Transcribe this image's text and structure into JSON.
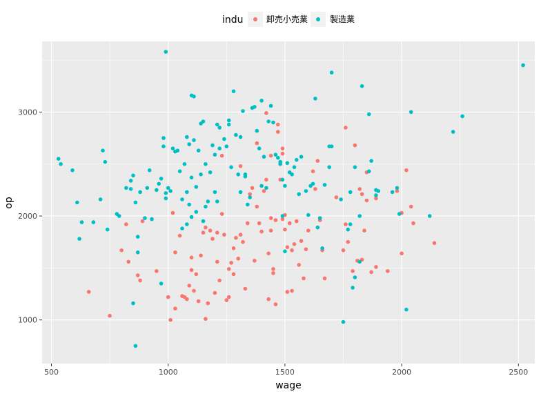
{
  "chart_data": {
    "type": "scatter",
    "xlabel": "wage",
    "ylabel": "op",
    "xlim": [
      460,
      2570
    ],
    "ylim": [
      580,
      3680
    ],
    "x_ticks": [
      500,
      1000,
      1500,
      2000,
      2500
    ],
    "y_ticks": [
      1000,
      2000,
      3000
    ],
    "grid": true,
    "legend": {
      "title": "indu",
      "position": "top",
      "entries": [
        "卸売小売業",
        "製造業"
      ]
    },
    "series": [
      {
        "name": "卸売小売業",
        "color": "#F8766D",
        "points": [
          [
            660,
            1270
          ],
          [
            750,
            1040
          ],
          [
            800,
            1670
          ],
          [
            830,
            1560
          ],
          [
            870,
            1430
          ],
          [
            880,
            1380
          ],
          [
            890,
            1950
          ],
          [
            820,
            1920
          ],
          [
            950,
            1470
          ],
          [
            1000,
            1220
          ],
          [
            1010,
            1000
          ],
          [
            1030,
            1110
          ],
          [
            1030,
            1650
          ],
          [
            1020,
            2030
          ],
          [
            1050,
            1810
          ],
          [
            1060,
            1230
          ],
          [
            1070,
            1220
          ],
          [
            1080,
            1200
          ],
          [
            1090,
            1330
          ],
          [
            1100,
            1480
          ],
          [
            1100,
            1600
          ],
          [
            1110,
            1280
          ],
          [
            1120,
            1440
          ],
          [
            1130,
            1180
          ],
          [
            1140,
            1620
          ],
          [
            1150,
            1840
          ],
          [
            1160,
            1890
          ],
          [
            1160,
            1010
          ],
          [
            1170,
            1160
          ],
          [
            1180,
            1860
          ],
          [
            1190,
            1780
          ],
          [
            1200,
            1260
          ],
          [
            1210,
            1560
          ],
          [
            1210,
            1840
          ],
          [
            1220,
            1380
          ],
          [
            1230,
            2580
          ],
          [
            1230,
            2020
          ],
          [
            1240,
            1820
          ],
          [
            1250,
            1190
          ],
          [
            1260,
            1220
          ],
          [
            1260,
            1490
          ],
          [
            1270,
            1550
          ],
          [
            1280,
            1690
          ],
          [
            1280,
            1440
          ],
          [
            1290,
            1790
          ],
          [
            1300,
            1590
          ],
          [
            1310,
            1820
          ],
          [
            1310,
            2480
          ],
          [
            1320,
            1750
          ],
          [
            1330,
            1300
          ],
          [
            1340,
            1930
          ],
          [
            1350,
            2210
          ],
          [
            1360,
            2270
          ],
          [
            1370,
            1570
          ],
          [
            1380,
            2090
          ],
          [
            1380,
            2700
          ],
          [
            1390,
            1930
          ],
          [
            1400,
            1850
          ],
          [
            1410,
            2240
          ],
          [
            1420,
            2350
          ],
          [
            1420,
            2990
          ],
          [
            1430,
            1640
          ],
          [
            1430,
            1200
          ],
          [
            1440,
            1980
          ],
          [
            1440,
            1860
          ],
          [
            1440,
            2580
          ],
          [
            1450,
            1490
          ],
          [
            1450,
            1450
          ],
          [
            1460,
            1150
          ],
          [
            1460,
            1960
          ],
          [
            1470,
            2810
          ],
          [
            1470,
            2880
          ],
          [
            1480,
            2350
          ],
          [
            1490,
            2600
          ],
          [
            1490,
            2650
          ],
          [
            1490,
            1970
          ],
          [
            1500,
            2010
          ],
          [
            1500,
            1870
          ],
          [
            1510,
            1270
          ],
          [
            1510,
            1700
          ],
          [
            1520,
            1930
          ],
          [
            1530,
            1280
          ],
          [
            1530,
            1670
          ],
          [
            1540,
            1730
          ],
          [
            1550,
            1950
          ],
          [
            1560,
            1530
          ],
          [
            1570,
            1760
          ],
          [
            1580,
            1400
          ],
          [
            1590,
            1680
          ],
          [
            1600,
            1860
          ],
          [
            1620,
            2430
          ],
          [
            1630,
            2260
          ],
          [
            1640,
            2530
          ],
          [
            1650,
            1960
          ],
          [
            1660,
            1670
          ],
          [
            1670,
            1400
          ],
          [
            1720,
            2180
          ],
          [
            1750,
            1670
          ],
          [
            1760,
            2850
          ],
          [
            1760,
            1920
          ],
          [
            1770,
            1750
          ],
          [
            1790,
            1470
          ],
          [
            1800,
            2680
          ],
          [
            1810,
            1570
          ],
          [
            1820,
            2260
          ],
          [
            1830,
            1580
          ],
          [
            1830,
            2210
          ],
          [
            1840,
            1860
          ],
          [
            1850,
            2420
          ],
          [
            1850,
            2150
          ],
          [
            1870,
            1460
          ],
          [
            1890,
            2170
          ],
          [
            1890,
            1510
          ],
          [
            1940,
            1470
          ],
          [
            1980,
            2240
          ],
          [
            2000,
            2030
          ],
          [
            2000,
            1640
          ],
          [
            2020,
            2440
          ],
          [
            2050,
            1930
          ],
          [
            2040,
            2090
          ],
          [
            2140,
            1740
          ]
        ]
      },
      {
        "name": "製造業",
        "color": "#00BFC4",
        "points": [
          [
            530,
            2550
          ],
          [
            540,
            2500
          ],
          [
            590,
            2440
          ],
          [
            610,
            2130
          ],
          [
            620,
            1780
          ],
          [
            630,
            1940
          ],
          [
            680,
            1940
          ],
          [
            710,
            2160
          ],
          [
            720,
            2630
          ],
          [
            730,
            2520
          ],
          [
            740,
            1870
          ],
          [
            780,
            2020
          ],
          [
            790,
            2000
          ],
          [
            820,
            2270
          ],
          [
            840,
            2260
          ],
          [
            840,
            2340
          ],
          [
            850,
            2390
          ],
          [
            850,
            1160
          ],
          [
            860,
            2130
          ],
          [
            860,
            750
          ],
          [
            870,
            1800
          ],
          [
            870,
            1650
          ],
          [
            880,
            2230
          ],
          [
            900,
            1980
          ],
          [
            910,
            2270
          ],
          [
            920,
            2440
          ],
          [
            930,
            1970
          ],
          [
            950,
            2250
          ],
          [
            960,
            2310
          ],
          [
            970,
            2360
          ],
          [
            970,
            1350
          ],
          [
            980,
            2750
          ],
          [
            980,
            2670
          ],
          [
            990,
            2170
          ],
          [
            990,
            2220
          ],
          [
            990,
            3580
          ],
          [
            1000,
            2270
          ],
          [
            1010,
            2240
          ],
          [
            1020,
            2650
          ],
          [
            1030,
            2620
          ],
          [
            1040,
            2630
          ],
          [
            1050,
            2430
          ],
          [
            1060,
            2160
          ],
          [
            1060,
            1880
          ],
          [
            1070,
            2500
          ],
          [
            1080,
            2760
          ],
          [
            1080,
            2230
          ],
          [
            1080,
            1920
          ],
          [
            1090,
            2690
          ],
          [
            1090,
            2110
          ],
          [
            1100,
            3160
          ],
          [
            1100,
            2370
          ],
          [
            1100,
            1990
          ],
          [
            1110,
            3150
          ],
          [
            1110,
            2730
          ],
          [
            1120,
            2280
          ],
          [
            1120,
            2040
          ],
          [
            1130,
            2630
          ],
          [
            1140,
            2890
          ],
          [
            1140,
            2400
          ],
          [
            1150,
            2910
          ],
          [
            1150,
            1950
          ],
          [
            1160,
            2500
          ],
          [
            1160,
            2090
          ],
          [
            1170,
            2140
          ],
          [
            1180,
            2420
          ],
          [
            1190,
            2680
          ],
          [
            1200,
            2590
          ],
          [
            1200,
            2230
          ],
          [
            1210,
            2880
          ],
          [
            1210,
            2140
          ],
          [
            1220,
            2850
          ],
          [
            1220,
            2650
          ],
          [
            1240,
            2740
          ],
          [
            1250,
            2670
          ],
          [
            1260,
            2880
          ],
          [
            1260,
            2920
          ],
          [
            1270,
            2470
          ],
          [
            1280,
            3200
          ],
          [
            1290,
            2780
          ],
          [
            1300,
            2400
          ],
          [
            1310,
            2230
          ],
          [
            1310,
            2760
          ],
          [
            1320,
            3010
          ],
          [
            1330,
            2380
          ],
          [
            1330,
            2400
          ],
          [
            1340,
            2110
          ],
          [
            1350,
            2180
          ],
          [
            1360,
            3040
          ],
          [
            1370,
            3050
          ],
          [
            1380,
            2820
          ],
          [
            1390,
            2650
          ],
          [
            1400,
            2290
          ],
          [
            1400,
            3110
          ],
          [
            1410,
            2570
          ],
          [
            1420,
            2270
          ],
          [
            1430,
            2910
          ],
          [
            1440,
            3060
          ],
          [
            1450,
            2900
          ],
          [
            1460,
            2590
          ],
          [
            1470,
            2560
          ],
          [
            1480,
            2500
          ],
          [
            1480,
            2520
          ],
          [
            1490,
            2350
          ],
          [
            1490,
            2000
          ],
          [
            1500,
            2290
          ],
          [
            1500,
            1660
          ],
          [
            1510,
            2510
          ],
          [
            1520,
            2420
          ],
          [
            1530,
            2400
          ],
          [
            1540,
            2470
          ],
          [
            1550,
            2540
          ],
          [
            1560,
            2210
          ],
          [
            1570,
            2570
          ],
          [
            1590,
            2240
          ],
          [
            1600,
            2010
          ],
          [
            1610,
            2290
          ],
          [
            1620,
            2310
          ],
          [
            1630,
            3130
          ],
          [
            1640,
            1890
          ],
          [
            1650,
            1980
          ],
          [
            1660,
            1690
          ],
          [
            1670,
            2300
          ],
          [
            1690,
            2470
          ],
          [
            1690,
            2670
          ],
          [
            1700,
            2670
          ],
          [
            1700,
            3380
          ],
          [
            1740,
            2160
          ],
          [
            1750,
            980
          ],
          [
            1770,
            1870
          ],
          [
            1780,
            1920
          ],
          [
            1780,
            2230
          ],
          [
            1790,
            1310
          ],
          [
            1800,
            1410
          ],
          [
            1800,
            2470
          ],
          [
            1820,
            1560
          ],
          [
            1820,
            2000
          ],
          [
            1830,
            3250
          ],
          [
            1860,
            2430
          ],
          [
            1860,
            2980
          ],
          [
            1870,
            2530
          ],
          [
            1890,
            2200
          ],
          [
            1890,
            2250
          ],
          [
            1900,
            2240
          ],
          [
            1960,
            2230
          ],
          [
            1980,
            2270
          ],
          [
            1990,
            2020
          ],
          [
            2020,
            1100
          ],
          [
            2040,
            3000
          ],
          [
            2120,
            2000
          ],
          [
            2220,
            2810
          ],
          [
            2260,
            2960
          ],
          [
            2520,
            3450
          ]
        ]
      }
    ]
  }
}
